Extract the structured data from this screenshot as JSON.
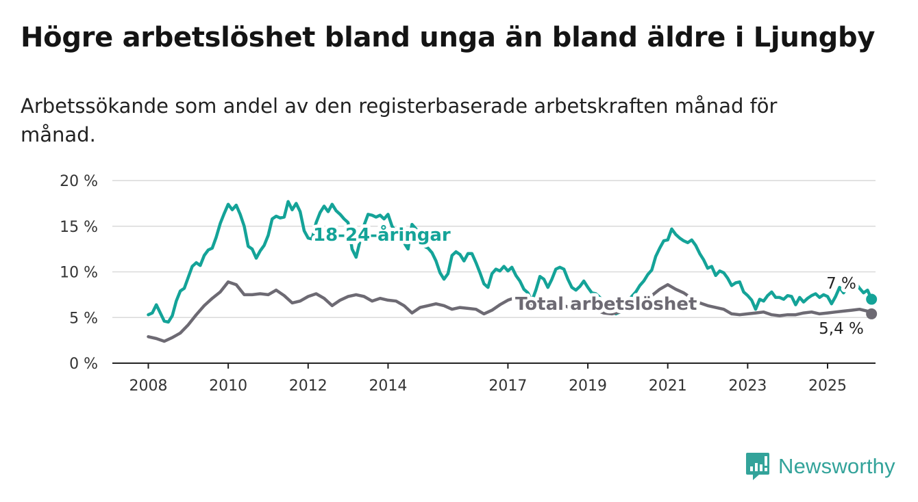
{
  "title": "Högre arbetslöshet bland unga än bland äldre i Ljungby",
  "subtitle": "Arbetssökande som andel av den registerbaserade arbetskraften månad för månad.",
  "brand": {
    "name": "Newsworthy",
    "icon": "newsworthy-logo-icon"
  },
  "colors": {
    "youth": "#14a398",
    "total": "#6d6a73",
    "grid": "#d9d9d9",
    "axis": "#222222"
  },
  "chart_data": {
    "type": "line",
    "ylim": [
      0,
      20
    ],
    "yticks": [
      0,
      5,
      10,
      15,
      20
    ],
    "ytick_labels": [
      "0 %",
      "5 %",
      "10 %",
      "15 %",
      "20 %"
    ],
    "xlim": [
      2007.1,
      2026.2
    ],
    "xticks": [
      2008,
      2010,
      2012,
      2014,
      2017,
      2019,
      2021,
      2023,
      2025
    ],
    "xtick_labels": [
      "2008",
      "2010",
      "2012",
      "2014",
      "2017",
      "2019",
      "2021",
      "2023",
      "2025"
    ],
    "grid": true,
    "series": [
      {
        "name": "18-24-åringar",
        "end_label": "7 %",
        "points": [
          [
            2008.0,
            5.3
          ],
          [
            2008.1,
            5.5
          ],
          [
            2008.2,
            6.4
          ],
          [
            2008.3,
            5.5
          ],
          [
            2008.4,
            4.6
          ],
          [
            2008.5,
            4.5
          ],
          [
            2008.6,
            5.2
          ],
          [
            2008.7,
            6.8
          ],
          [
            2008.8,
            7.9
          ],
          [
            2008.9,
            8.2
          ],
          [
            2009.0,
            9.4
          ],
          [
            2009.1,
            10.6
          ],
          [
            2009.2,
            11.0
          ],
          [
            2009.3,
            10.7
          ],
          [
            2009.4,
            11.8
          ],
          [
            2009.5,
            12.4
          ],
          [
            2009.6,
            12.6
          ],
          [
            2009.7,
            13.8
          ],
          [
            2009.8,
            15.3
          ],
          [
            2009.9,
            16.4
          ],
          [
            2010.0,
            17.4
          ],
          [
            2010.1,
            16.8
          ],
          [
            2010.2,
            17.3
          ],
          [
            2010.3,
            16.3
          ],
          [
            2010.4,
            15.0
          ],
          [
            2010.5,
            12.8
          ],
          [
            2010.6,
            12.5
          ],
          [
            2010.7,
            11.5
          ],
          [
            2010.8,
            12.3
          ],
          [
            2010.9,
            12.9
          ],
          [
            2011.0,
            14.0
          ],
          [
            2011.1,
            15.8
          ],
          [
            2011.2,
            16.1
          ],
          [
            2011.3,
            15.9
          ],
          [
            2011.4,
            16.0
          ],
          [
            2011.5,
            17.7
          ],
          [
            2011.6,
            16.8
          ],
          [
            2011.7,
            17.5
          ],
          [
            2011.8,
            16.6
          ],
          [
            2011.9,
            14.5
          ],
          [
            2012.0,
            13.7
          ],
          [
            2012.1,
            13.6
          ],
          [
            2012.2,
            15.4
          ],
          [
            2012.3,
            16.5
          ],
          [
            2012.4,
            17.2
          ],
          [
            2012.5,
            16.6
          ],
          [
            2012.6,
            17.4
          ],
          [
            2012.7,
            16.7
          ],
          [
            2012.8,
            16.3
          ],
          [
            2012.9,
            15.8
          ],
          [
            2013.0,
            15.4
          ],
          [
            2013.1,
            12.5
          ],
          [
            2013.2,
            11.6
          ],
          [
            2013.3,
            13.4
          ],
          [
            2013.4,
            15.1
          ],
          [
            2013.5,
            16.3
          ],
          [
            2013.6,
            16.2
          ],
          [
            2013.7,
            16.0
          ],
          [
            2013.8,
            16.2
          ],
          [
            2013.9,
            15.8
          ],
          [
            2014.0,
            16.3
          ],
          [
            2014.1,
            15.0
          ],
          [
            2014.2,
            14.4
          ],
          [
            2014.3,
            14.0
          ],
          [
            2014.4,
            13.2
          ],
          [
            2014.5,
            12.5
          ],
          [
            2014.6,
            15.2
          ],
          [
            2014.7,
            14.7
          ],
          [
            2014.8,
            13.4
          ],
          [
            2014.9,
            12.8
          ],
          [
            2015.0,
            12.6
          ],
          [
            2015.1,
            12.1
          ],
          [
            2015.2,
            11.2
          ],
          [
            2015.3,
            9.9
          ],
          [
            2015.4,
            9.2
          ],
          [
            2015.5,
            9.8
          ],
          [
            2015.6,
            11.8
          ],
          [
            2015.7,
            12.2
          ],
          [
            2015.8,
            11.9
          ],
          [
            2015.9,
            11.2
          ],
          [
            2016.0,
            12.0
          ],
          [
            2016.1,
            12.0
          ],
          [
            2016.2,
            11.0
          ],
          [
            2016.3,
            9.9
          ],
          [
            2016.4,
            8.7
          ],
          [
            2016.5,
            8.3
          ],
          [
            2016.6,
            9.8
          ],
          [
            2016.7,
            10.3
          ],
          [
            2016.8,
            10.1
          ],
          [
            2016.9,
            10.6
          ],
          [
            2017.0,
            10.1
          ],
          [
            2017.1,
            10.5
          ],
          [
            2017.2,
            9.6
          ],
          [
            2017.3,
            9.0
          ],
          [
            2017.4,
            8.1
          ],
          [
            2017.5,
            7.7
          ],
          [
            2017.6,
            6.8
          ],
          [
            2017.7,
            8.0
          ],
          [
            2017.8,
            9.5
          ],
          [
            2017.9,
            9.2
          ],
          [
            2018.0,
            8.3
          ],
          [
            2018.1,
            9.2
          ],
          [
            2018.2,
            10.3
          ],
          [
            2018.3,
            10.5
          ],
          [
            2018.4,
            10.3
          ],
          [
            2018.5,
            9.2
          ],
          [
            2018.6,
            8.3
          ],
          [
            2018.7,
            8.0
          ],
          [
            2018.8,
            8.4
          ],
          [
            2018.9,
            9.0
          ],
          [
            2019.0,
            8.3
          ],
          [
            2019.1,
            7.7
          ],
          [
            2019.2,
            7.6
          ],
          [
            2019.3,
            7.2
          ],
          [
            2019.4,
            6.5
          ],
          [
            2019.5,
            6.1
          ],
          [
            2019.6,
            5.8
          ],
          [
            2019.7,
            5.4
          ],
          [
            2019.8,
            5.6
          ],
          [
            2019.9,
            6.2
          ],
          [
            2020.0,
            6.8
          ],
          [
            2020.1,
            7.3
          ],
          [
            2020.2,
            7.8
          ],
          [
            2020.3,
            8.5
          ],
          [
            2020.4,
            9.0
          ],
          [
            2020.5,
            9.7
          ],
          [
            2020.6,
            10.2
          ],
          [
            2020.7,
            11.7
          ],
          [
            2020.8,
            12.6
          ],
          [
            2020.9,
            13.4
          ],
          [
            2021.0,
            13.5
          ],
          [
            2021.1,
            14.7
          ],
          [
            2021.2,
            14.1
          ],
          [
            2021.3,
            13.7
          ],
          [
            2021.4,
            13.4
          ],
          [
            2021.5,
            13.2
          ],
          [
            2021.6,
            13.5
          ],
          [
            2021.7,
            12.9
          ],
          [
            2021.8,
            12.0
          ],
          [
            2021.9,
            11.3
          ],
          [
            2022.0,
            10.4
          ],
          [
            2022.1,
            10.6
          ],
          [
            2022.2,
            9.6
          ],
          [
            2022.3,
            10.1
          ],
          [
            2022.4,
            9.9
          ],
          [
            2022.5,
            9.3
          ],
          [
            2022.6,
            8.5
          ],
          [
            2022.7,
            8.8
          ],
          [
            2022.8,
            8.9
          ],
          [
            2022.9,
            7.8
          ],
          [
            2023.0,
            7.4
          ],
          [
            2023.1,
            6.9
          ],
          [
            2023.2,
            5.9
          ],
          [
            2023.3,
            7.0
          ],
          [
            2023.4,
            6.8
          ],
          [
            2023.5,
            7.4
          ],
          [
            2023.6,
            7.8
          ],
          [
            2023.7,
            7.2
          ],
          [
            2023.8,
            7.2
          ],
          [
            2023.9,
            7.0
          ],
          [
            2024.0,
            7.4
          ],
          [
            2024.1,
            7.3
          ],
          [
            2024.2,
            6.4
          ],
          [
            2024.3,
            7.2
          ],
          [
            2024.4,
            6.7
          ],
          [
            2024.5,
            7.1
          ],
          [
            2024.6,
            7.4
          ],
          [
            2024.7,
            7.6
          ],
          [
            2024.8,
            7.2
          ],
          [
            2024.9,
            7.5
          ],
          [
            2025.0,
            7.3
          ],
          [
            2025.1,
            6.5
          ],
          [
            2025.2,
            7.3
          ],
          [
            2025.3,
            8.3
          ],
          [
            2025.4,
            7.7
          ],
          [
            2025.5,
            8.3
          ],
          [
            2025.6,
            8.8
          ],
          [
            2025.7,
            8.8
          ],
          [
            2025.8,
            8.2
          ],
          [
            2025.9,
            7.7
          ],
          [
            2026.0,
            8.0
          ],
          [
            2026.1,
            7.0
          ]
        ]
      },
      {
        "name": "Total arbetslöshet",
        "end_label": "5,4 %",
        "points": [
          [
            2008.0,
            2.9
          ],
          [
            2008.2,
            2.7
          ],
          [
            2008.4,
            2.4
          ],
          [
            2008.6,
            2.8
          ],
          [
            2008.8,
            3.3
          ],
          [
            2009.0,
            4.2
          ],
          [
            2009.2,
            5.3
          ],
          [
            2009.4,
            6.3
          ],
          [
            2009.6,
            7.1
          ],
          [
            2009.8,
            7.8
          ],
          [
            2010.0,
            8.9
          ],
          [
            2010.2,
            8.6
          ],
          [
            2010.4,
            7.5
          ],
          [
            2010.6,
            7.5
          ],
          [
            2010.8,
            7.6
          ],
          [
            2011.0,
            7.5
          ],
          [
            2011.2,
            8.0
          ],
          [
            2011.4,
            7.4
          ],
          [
            2011.6,
            6.6
          ],
          [
            2011.8,
            6.8
          ],
          [
            2012.0,
            7.3
          ],
          [
            2012.2,
            7.6
          ],
          [
            2012.4,
            7.1
          ],
          [
            2012.6,
            6.3
          ],
          [
            2012.8,
            6.9
          ],
          [
            2013.0,
            7.3
          ],
          [
            2013.2,
            7.5
          ],
          [
            2013.4,
            7.3
          ],
          [
            2013.6,
            6.8
          ],
          [
            2013.8,
            7.1
          ],
          [
            2014.0,
            6.9
          ],
          [
            2014.2,
            6.8
          ],
          [
            2014.4,
            6.3
          ],
          [
            2014.6,
            5.5
          ],
          [
            2014.8,
            6.1
          ],
          [
            2015.0,
            6.3
          ],
          [
            2015.2,
            6.5
          ],
          [
            2015.4,
            6.3
          ],
          [
            2015.6,
            5.9
          ],
          [
            2015.8,
            6.1
          ],
          [
            2016.0,
            6.0
          ],
          [
            2016.2,
            5.9
          ],
          [
            2016.4,
            5.4
          ],
          [
            2016.6,
            5.8
          ],
          [
            2016.8,
            6.4
          ],
          [
            2017.0,
            6.9
          ],
          [
            2017.2,
            7.2
          ],
          [
            2017.4,
            7.0
          ],
          [
            2017.6,
            6.5
          ],
          [
            2017.8,
            6.4
          ],
          [
            2018.0,
            6.7
          ],
          [
            2018.2,
            6.6
          ],
          [
            2018.4,
            6.3
          ],
          [
            2018.6,
            6.0
          ],
          [
            2018.8,
            6.0
          ],
          [
            2019.0,
            6.1
          ],
          [
            2019.2,
            5.8
          ],
          [
            2019.4,
            5.5
          ],
          [
            2019.6,
            5.4
          ],
          [
            2019.8,
            5.6
          ],
          [
            2020.0,
            6.0
          ],
          [
            2020.2,
            6.4
          ],
          [
            2020.4,
            6.9
          ],
          [
            2020.6,
            7.4
          ],
          [
            2020.8,
            8.1
          ],
          [
            2021.0,
            8.6
          ],
          [
            2021.2,
            8.1
          ],
          [
            2021.4,
            7.7
          ],
          [
            2021.6,
            7.1
          ],
          [
            2021.8,
            6.6
          ],
          [
            2022.0,
            6.3
          ],
          [
            2022.2,
            6.1
          ],
          [
            2022.4,
            5.9
          ],
          [
            2022.6,
            5.4
          ],
          [
            2022.8,
            5.3
          ],
          [
            2023.0,
            5.4
          ],
          [
            2023.2,
            5.5
          ],
          [
            2023.4,
            5.6
          ],
          [
            2023.6,
            5.3
          ],
          [
            2023.8,
            5.2
          ],
          [
            2024.0,
            5.3
          ],
          [
            2024.2,
            5.3
          ],
          [
            2024.4,
            5.5
          ],
          [
            2024.6,
            5.6
          ],
          [
            2024.8,
            5.4
          ],
          [
            2025.0,
            5.5
          ],
          [
            2025.2,
            5.6
          ],
          [
            2025.4,
            5.7
          ],
          [
            2025.6,
            5.8
          ],
          [
            2025.8,
            5.9
          ],
          [
            2026.0,
            5.7
          ],
          [
            2026.1,
            5.4
          ]
        ]
      }
    ]
  }
}
